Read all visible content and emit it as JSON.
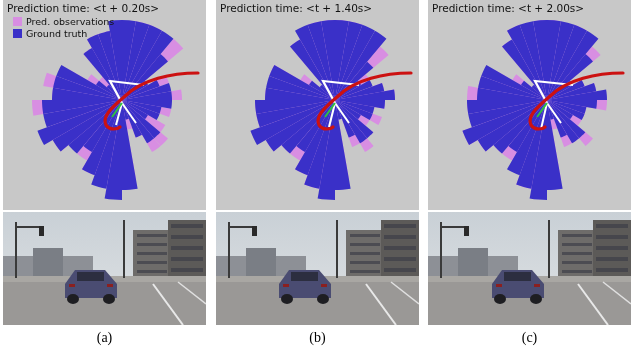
{
  "chart_data": [
    {
      "type": "polarArea",
      "title": "Prediction time: <t + 0.20s>",
      "legend": "top-left",
      "tick_labels": false,
      "grid": false,
      "ylim": [
        0,
        10
      ],
      "categories": [
        null,
        null,
        null,
        null,
        null,
        null,
        null,
        null,
        null,
        null,
        null,
        null,
        null,
        null,
        null,
        null,
        null,
        null,
        null,
        null,
        null,
        null,
        null,
        null,
        null,
        null,
        null,
        null,
        null,
        null,
        null,
        null,
        null,
        null,
        null,
        null
      ],
      "series": [
        {
          "name": "Pred. observations",
          "color": "#d88ee2",
          "values": [
            7,
            8,
            8,
            7,
            8,
            3,
            5,
            4,
            6,
            4,
            5,
            3,
            5,
            6,
            6,
            4,
            3,
            8,
            9,
            8,
            8,
            7,
            6,
            8,
            8,
            7,
            9,
            7,
            8,
            6,
            4,
            3,
            6,
            7,
            7,
            7
          ]
        },
        {
          "name": "Ground truth",
          "color": "#3a30c8",
          "values": [
            8,
            8,
            8,
            8,
            6,
            3,
            4,
            5,
            5,
            5,
            4,
            4,
            3,
            5,
            5,
            4,
            2,
            9,
            10,
            9,
            8,
            6,
            7,
            8,
            9,
            8,
            8,
            7,
            7,
            7,
            3,
            2,
            6,
            7,
            7,
            8
          ]
        }
      ]
    },
    {
      "type": "polarArea",
      "title": "Prediction time: <t + 1.40s>",
      "tick_labels": false,
      "grid": false,
      "ylim": [
        0,
        10
      ],
      "categories": [
        null,
        null,
        null,
        null,
        null,
        null,
        null,
        null,
        null,
        null,
        null,
        null,
        null,
        null,
        null,
        null,
        null,
        null,
        null,
        null,
        null,
        null,
        null,
        null,
        null,
        null,
        null,
        null,
        null,
        null,
        null,
        null,
        null,
        null,
        null,
        null
      ],
      "series": [
        {
          "color": "#d88ee2",
          "values": [
            8,
            8,
            7,
            7,
            7,
            4,
            3,
            5,
            6,
            5,
            4,
            5,
            4,
            5,
            6,
            5,
            2,
            8,
            9,
            9,
            8,
            7,
            7,
            8,
            8,
            8,
            8,
            7,
            6,
            7,
            4,
            2,
            7,
            7,
            8,
            8
          ]
        },
        {
          "color": "#3a30c8",
          "values": [
            8,
            8,
            8,
            8,
            5,
            3,
            4,
            5,
            6,
            5,
            4,
            4,
            3,
            5,
            5,
            4,
            2,
            9,
            10,
            9,
            8,
            6,
            7,
            8,
            9,
            8,
            8,
            7,
            7,
            7,
            3,
            2,
            7,
            8,
            8,
            8
          ]
        }
      ]
    },
    {
      "type": "polarArea",
      "title": "Prediction time: <t + 2.00s>",
      "tick_labels": false,
      "grid": false,
      "ylim": [
        0,
        10
      ],
      "categories": [
        null,
        null,
        null,
        null,
        null,
        null,
        null,
        null,
        null,
        null,
        null,
        null,
        null,
        null,
        null,
        null,
        null,
        null,
        null,
        null,
        null,
        null,
        null,
        null,
        null,
        null,
        null,
        null,
        null,
        null,
        null,
        null,
        null,
        null,
        null,
        null
      ],
      "series": [
        {
          "color": "#d88ee2",
          "values": [
            8,
            7,
            8,
            7,
            7,
            3,
            4,
            5,
            5,
            6,
            4,
            4,
            4,
            6,
            5,
            5,
            3,
            8,
            9,
            9,
            7,
            7,
            7,
            8,
            9,
            7,
            8,
            8,
            7,
            6,
            4,
            2,
            7,
            8,
            7,
            8
          ]
        },
        {
          "color": "#3a30c8",
          "values": [
            8,
            8,
            8,
            8,
            6,
            3,
            4,
            5,
            6,
            5,
            4,
            4,
            3,
            5,
            5,
            4,
            2,
            9,
            10,
            9,
            8,
            6,
            7,
            8,
            9,
            8,
            8,
            7,
            7,
            7,
            3,
            2,
            7,
            8,
            8,
            8
          ]
        }
      ]
    }
  ],
  "captions": [
    "(a)",
    "(b)",
    "(c)"
  ]
}
